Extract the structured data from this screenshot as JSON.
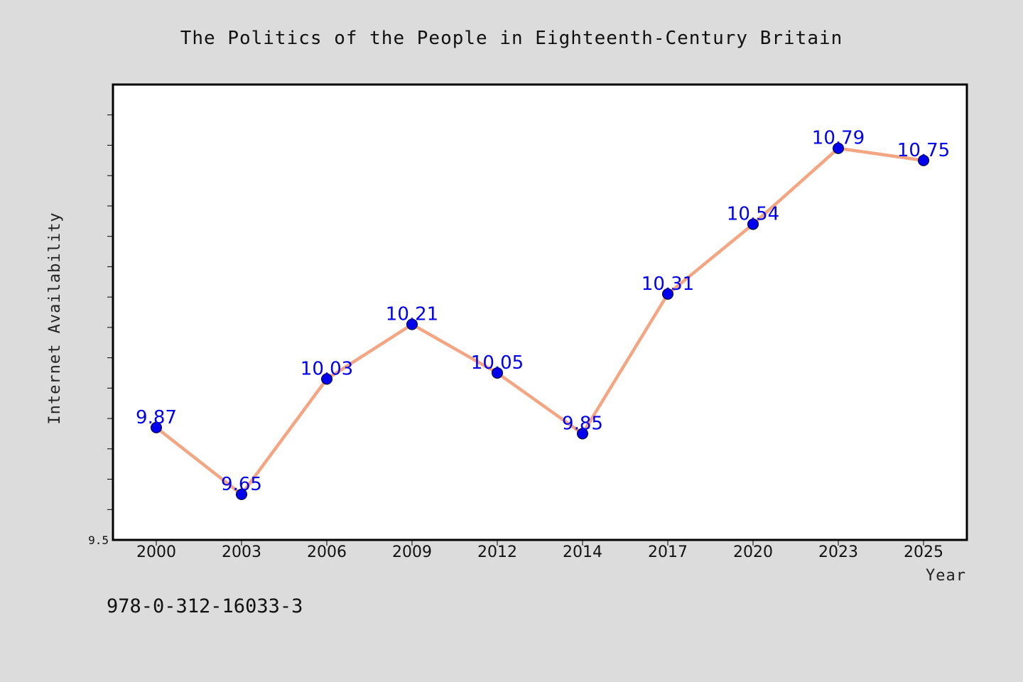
{
  "chart_data": {
    "type": "line",
    "title": "The Politics of the People in Eighteenth-Century Britain",
    "xlabel": "Year",
    "ylabel": "Internet Availability",
    "categories": [
      "2000",
      "2003",
      "2006",
      "2009",
      "2012",
      "2014",
      "2017",
      "2020",
      "2023",
      "2025"
    ],
    "series": [
      {
        "values": [
          9.87,
          9.65,
          10.03,
          10.21,
          10.05,
          9.85,
          10.31,
          10.54,
          10.79,
          10.75
        ],
        "line_color": "#f4a582",
        "marker_color": "#0000ee"
      }
    ],
    "data_label_color": "#0000ee",
    "ylim": [
      9.5,
      11.0
    ],
    "ytick_labels": [
      "9.5"
    ],
    "grid": false,
    "legend": "none"
  },
  "footnote": "978-0-312-16033-3"
}
